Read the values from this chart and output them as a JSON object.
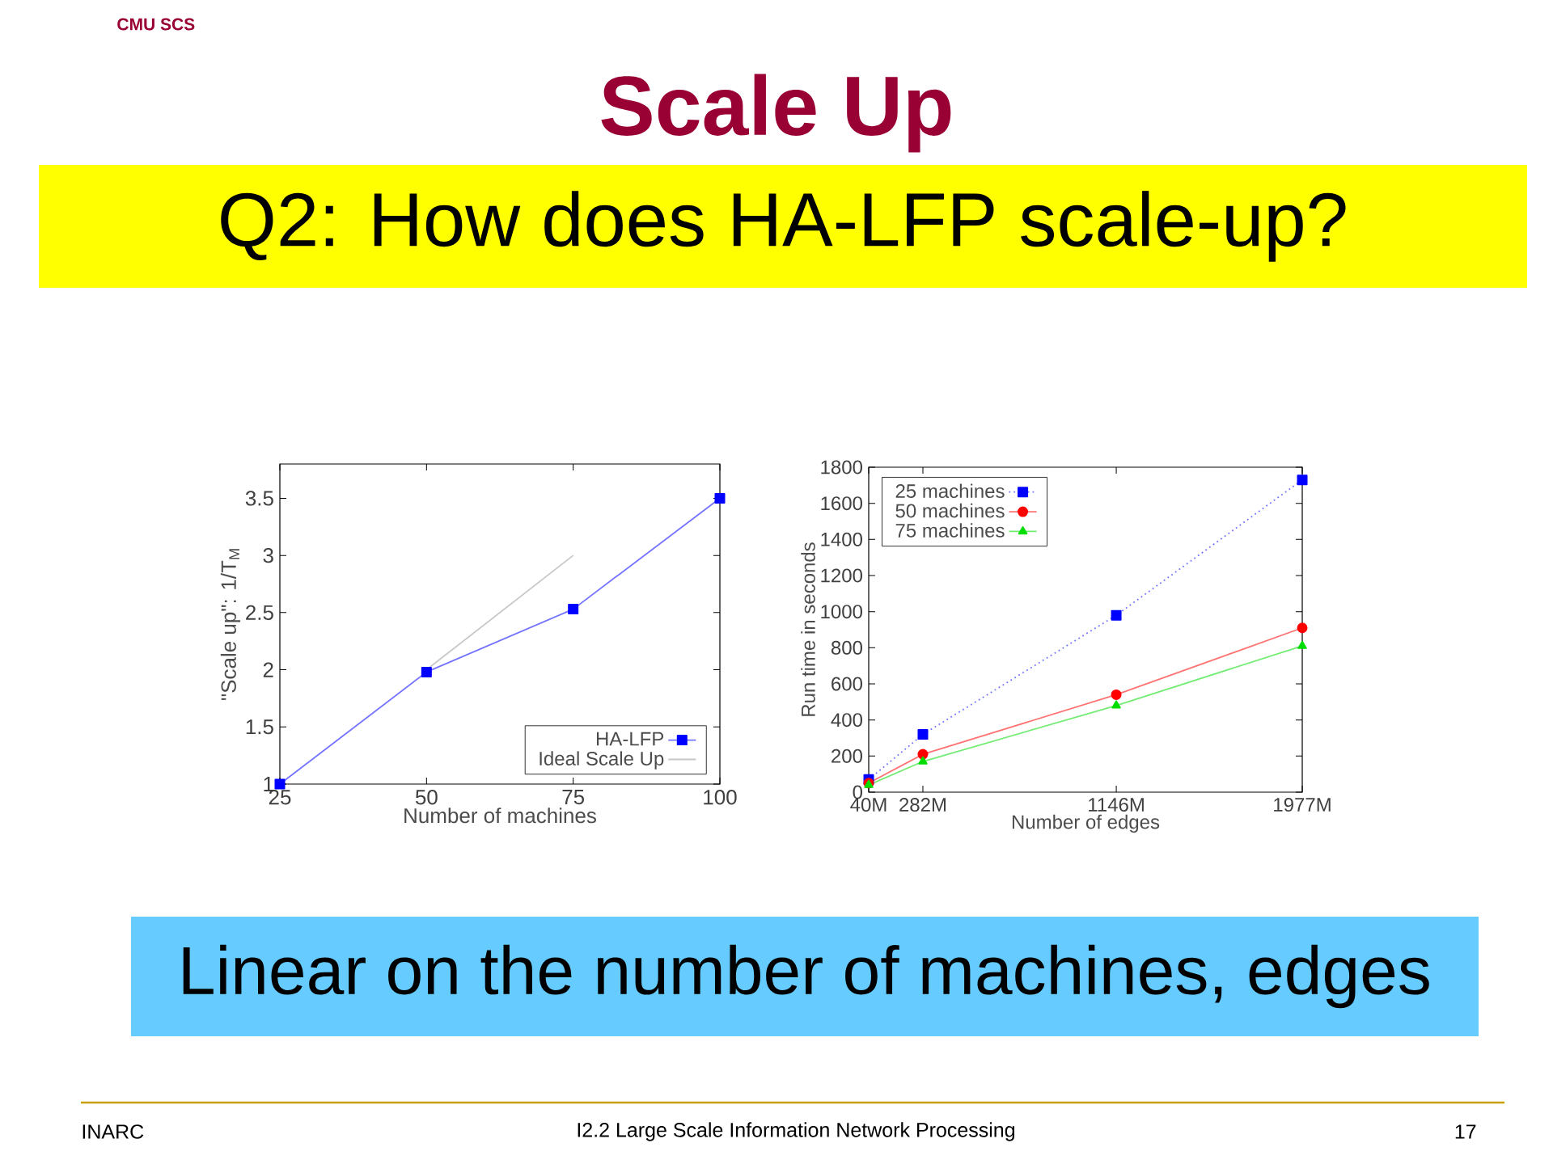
{
  "chart_data": [
    {
      "type": "other",
      "title": "Scale Up",
      "subtitle": "Q2: How does HA-LFP scale-up?",
      "annotations": [
        "CMU SCS",
        "Linear on the number of machines, edges",
        "INARC",
        "I2.2 Large Scale Information Network Processing",
        "17"
      ]
    },
    {
      "type": "line",
      "xlabel": "Number of machines",
      "ylabel": "\"Scale up\": 1/T$_{M}$",
      "x": [
        25,
        50,
        75,
        100
      ],
      "xlim": [
        25,
        100
      ],
      "xticks": [
        25,
        50,
        75,
        100
      ],
      "ylim": [
        1,
        3.8
      ],
      "yticks": [
        1,
        1.5,
        2,
        2.5,
        3,
        3.5
      ],
      "legend": "bottom right",
      "series": [
        {
          "name": "HA-LFP",
          "color": "#0000ff",
          "marker": "square",
          "line_style": "solid",
          "values": [
            1,
            1.98,
            2.53,
            3.5
          ]
        },
        {
          "name": "Ideal Scale Up",
          "color": "#c8c8c8",
          "marker": "none",
          "line_style": "solid",
          "x": [
            50,
            75
          ],
          "values": [
            2,
            3
          ]
        }
      ]
    },
    {
      "type": "line",
      "xlabel": "Number of edges",
      "ylabel": "Run time in seconds",
      "x": [
        40,
        282,
        1146,
        1977
      ],
      "xlim": [
        40,
        1977
      ],
      "xticks": [
        {
          "value": 40,
          "label": "40M"
        },
        {
          "value": 282,
          "label": "282M"
        },
        {
          "value": 1146,
          "label": "1146M"
        },
        {
          "value": 1977,
          "label": "1977M"
        }
      ],
      "ylim": [
        0,
        1800
      ],
      "yticks": [
        0,
        200,
        400,
        600,
        800,
        1000,
        1200,
        1400,
        1600,
        1800
      ],
      "legend": "top left",
      "series": [
        {
          "name": "25 machines",
          "color": "#0000ff",
          "marker": "square",
          "line_style": "dotted",
          "values": [
            70,
            320,
            980,
            1730
          ]
        },
        {
          "name": "50 machines",
          "color": "#ff0000",
          "marker": "circle",
          "line_style": "solid",
          "values": [
            50,
            210,
            540,
            910
          ]
        },
        {
          "name": "75 machines",
          "color": "#00dd00",
          "marker": "triangle",
          "line_style": "solid",
          "values": [
            40,
            170,
            480,
            810
          ]
        }
      ]
    }
  ]
}
